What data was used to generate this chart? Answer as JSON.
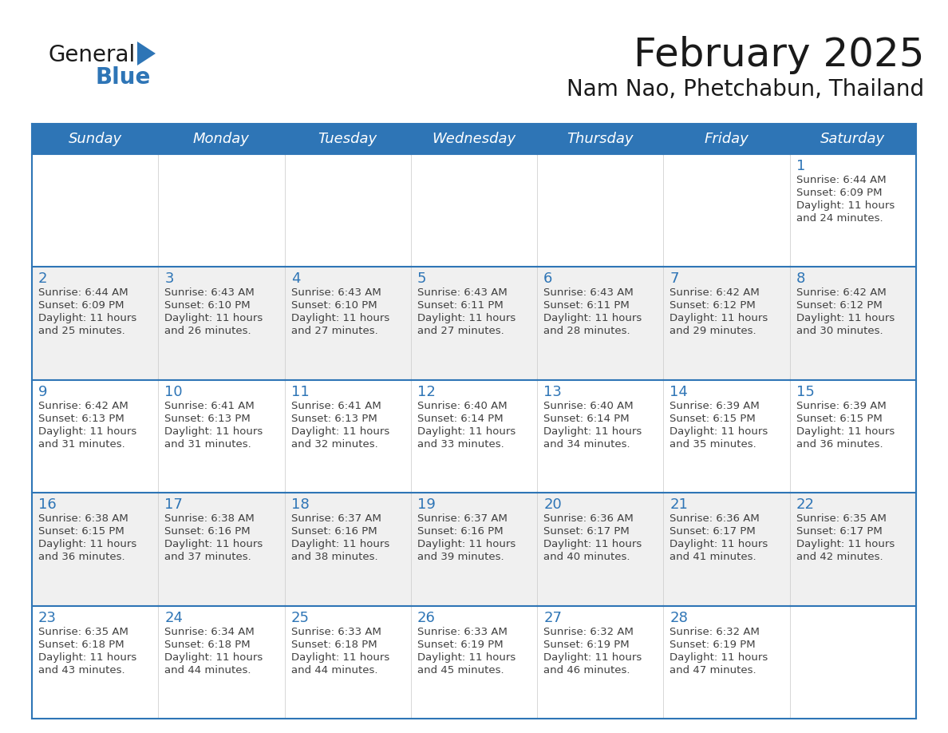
{
  "title": "February 2025",
  "subtitle": "Nam Nao, Phetchabun, Thailand",
  "header_bg": "#2E75B6",
  "header_text_color": "#FFFFFF",
  "cell_bg_white": "#FFFFFF",
  "cell_bg_gray": "#F0F0F0",
  "border_color": "#2E75B6",
  "day_number_color": "#2E75B6",
  "text_color": "#404040",
  "days_of_week": [
    "Sunday",
    "Monday",
    "Tuesday",
    "Wednesday",
    "Thursday",
    "Friday",
    "Saturday"
  ],
  "weeks": [
    [
      {
        "day": "",
        "sunrise": "",
        "sunset": "",
        "daylight_hours": 0,
        "daylight_minutes": 0
      },
      {
        "day": "",
        "sunrise": "",
        "sunset": "",
        "daylight_hours": 0,
        "daylight_minutes": 0
      },
      {
        "day": "",
        "sunrise": "",
        "sunset": "",
        "daylight_hours": 0,
        "daylight_minutes": 0
      },
      {
        "day": "",
        "sunrise": "",
        "sunset": "",
        "daylight_hours": 0,
        "daylight_minutes": 0
      },
      {
        "day": "",
        "sunrise": "",
        "sunset": "",
        "daylight_hours": 0,
        "daylight_minutes": 0
      },
      {
        "day": "",
        "sunrise": "",
        "sunset": "",
        "daylight_hours": 0,
        "daylight_minutes": 0
      },
      {
        "day": "1",
        "sunrise": "6:44 AM",
        "sunset": "6:09 PM",
        "daylight_hours": 11,
        "daylight_minutes": 24
      }
    ],
    [
      {
        "day": "2",
        "sunrise": "6:44 AM",
        "sunset": "6:09 PM",
        "daylight_hours": 11,
        "daylight_minutes": 25
      },
      {
        "day": "3",
        "sunrise": "6:43 AM",
        "sunset": "6:10 PM",
        "daylight_hours": 11,
        "daylight_minutes": 26
      },
      {
        "day": "4",
        "sunrise": "6:43 AM",
        "sunset": "6:10 PM",
        "daylight_hours": 11,
        "daylight_minutes": 27
      },
      {
        "day": "5",
        "sunrise": "6:43 AM",
        "sunset": "6:11 PM",
        "daylight_hours": 11,
        "daylight_minutes": 27
      },
      {
        "day": "6",
        "sunrise": "6:43 AM",
        "sunset": "6:11 PM",
        "daylight_hours": 11,
        "daylight_minutes": 28
      },
      {
        "day": "7",
        "sunrise": "6:42 AM",
        "sunset": "6:12 PM",
        "daylight_hours": 11,
        "daylight_minutes": 29
      },
      {
        "day": "8",
        "sunrise": "6:42 AM",
        "sunset": "6:12 PM",
        "daylight_hours": 11,
        "daylight_minutes": 30
      }
    ],
    [
      {
        "day": "9",
        "sunrise": "6:42 AM",
        "sunset": "6:13 PM",
        "daylight_hours": 11,
        "daylight_minutes": 31
      },
      {
        "day": "10",
        "sunrise": "6:41 AM",
        "sunset": "6:13 PM",
        "daylight_hours": 11,
        "daylight_minutes": 31
      },
      {
        "day": "11",
        "sunrise": "6:41 AM",
        "sunset": "6:13 PM",
        "daylight_hours": 11,
        "daylight_minutes": 32
      },
      {
        "day": "12",
        "sunrise": "6:40 AM",
        "sunset": "6:14 PM",
        "daylight_hours": 11,
        "daylight_minutes": 33
      },
      {
        "day": "13",
        "sunrise": "6:40 AM",
        "sunset": "6:14 PM",
        "daylight_hours": 11,
        "daylight_minutes": 34
      },
      {
        "day": "14",
        "sunrise": "6:39 AM",
        "sunset": "6:15 PM",
        "daylight_hours": 11,
        "daylight_minutes": 35
      },
      {
        "day": "15",
        "sunrise": "6:39 AM",
        "sunset": "6:15 PM",
        "daylight_hours": 11,
        "daylight_minutes": 36
      }
    ],
    [
      {
        "day": "16",
        "sunrise": "6:38 AM",
        "sunset": "6:15 PM",
        "daylight_hours": 11,
        "daylight_minutes": 36
      },
      {
        "day": "17",
        "sunrise": "6:38 AM",
        "sunset": "6:16 PM",
        "daylight_hours": 11,
        "daylight_minutes": 37
      },
      {
        "day": "18",
        "sunrise": "6:37 AM",
        "sunset": "6:16 PM",
        "daylight_hours": 11,
        "daylight_minutes": 38
      },
      {
        "day": "19",
        "sunrise": "6:37 AM",
        "sunset": "6:16 PM",
        "daylight_hours": 11,
        "daylight_minutes": 39
      },
      {
        "day": "20",
        "sunrise": "6:36 AM",
        "sunset": "6:17 PM",
        "daylight_hours": 11,
        "daylight_minutes": 40
      },
      {
        "day": "21",
        "sunrise": "6:36 AM",
        "sunset": "6:17 PM",
        "daylight_hours": 11,
        "daylight_minutes": 41
      },
      {
        "day": "22",
        "sunrise": "6:35 AM",
        "sunset": "6:17 PM",
        "daylight_hours": 11,
        "daylight_minutes": 42
      }
    ],
    [
      {
        "day": "23",
        "sunrise": "6:35 AM",
        "sunset": "6:18 PM",
        "daylight_hours": 11,
        "daylight_minutes": 43
      },
      {
        "day": "24",
        "sunrise": "6:34 AM",
        "sunset": "6:18 PM",
        "daylight_hours": 11,
        "daylight_minutes": 44
      },
      {
        "day": "25",
        "sunrise": "6:33 AM",
        "sunset": "6:18 PM",
        "daylight_hours": 11,
        "daylight_minutes": 44
      },
      {
        "day": "26",
        "sunrise": "6:33 AM",
        "sunset": "6:19 PM",
        "daylight_hours": 11,
        "daylight_minutes": 45
      },
      {
        "day": "27",
        "sunrise": "6:32 AM",
        "sunset": "6:19 PM",
        "daylight_hours": 11,
        "daylight_minutes": 46
      },
      {
        "day": "28",
        "sunrise": "6:32 AM",
        "sunset": "6:19 PM",
        "daylight_hours": 11,
        "daylight_minutes": 47
      },
      {
        "day": "",
        "sunrise": "",
        "sunset": "",
        "daylight_hours": 0,
        "daylight_minutes": 0
      }
    ]
  ],
  "logo_text1": "General",
  "logo_text2": "Blue",
  "logo_triangle_color": "#2E75B6",
  "title_fontsize": 36,
  "subtitle_fontsize": 20,
  "header_fontsize": 13,
  "day_num_fontsize": 13,
  "cell_text_fontsize": 9.5
}
